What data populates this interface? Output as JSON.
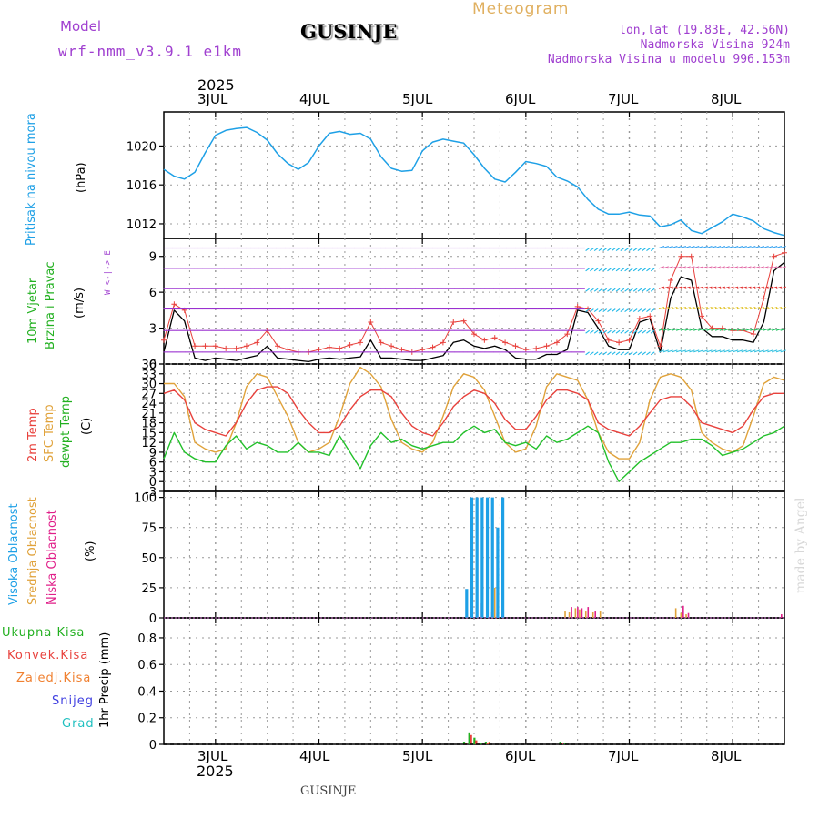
{
  "header": {
    "model_label": "Model",
    "model_name": "wrf-nmm_v3.9.1 e1km",
    "station": "GUSINJE",
    "product": "Meteogram",
    "lonlat": "lon,lat (19.83E, 42.56N)",
    "elevation": "Nadmorska Visina 924m",
    "model_elevation": "Nadmorska Visina u modelu 996.153m"
  },
  "footer": {
    "station": "GUSINJE",
    "credit": "made by Angel"
  },
  "time_axis": {
    "year": "2025",
    "day_labels": [
      "3JUL",
      "4JUL",
      "5JUL",
      "6JUL",
      "7JUL",
      "8JUL"
    ],
    "start_day": 2.5,
    "end_day": 8.5
  },
  "colors": {
    "pressure": "#1ea0e6",
    "temp2m": "#e8413c",
    "sfc_temp": "#e0a23a",
    "dewpt": "#22c02a",
    "cloud_high": "#1ea0e6",
    "cloud_mid": "#e0a23a",
    "cloud_low": "#e0208a",
    "precip_total": "#22b020",
    "precip_conv": "#e8413c",
    "precip_frozen": "#f08030",
    "snow": "#4040e0",
    "hail": "#20c0c0",
    "wind_speed": "#000000",
    "gust": "#e8413c",
    "axis_label": "#000000",
    "meta": "#a040d0"
  },
  "panels": {
    "pressure": {
      "label": "Pritisak na nivou mora",
      "unit": "(hPa)",
      "ticks": [
        "1012",
        "1016",
        "1020"
      ]
    },
    "wind": {
      "label1": "10m Vjetar",
      "label2": "Brzina i Pravac",
      "unit": "(m/s)",
      "ticks": [
        "0",
        "3",
        "6",
        "9"
      ],
      "compass": "W <-|-> E",
      "compass_n": "N",
      "compass_s": "S"
    },
    "temp": {
      "label_2m": "2m Temp",
      "label_sfc": "SFC Temp",
      "label_dew": "dewpt Temp",
      "unit": "(C)",
      "ticks": [
        "-3",
        "0",
        "3",
        "6",
        "9",
        "12",
        "15",
        "18",
        "21",
        "24",
        "27",
        "30",
        "33",
        "36"
      ]
    },
    "cloud": {
      "label_high": "Visoka Oblacnost",
      "label_mid": "Srednja Oblacnost",
      "label_low": "Niska Oblacnost",
      "unit": "(%)",
      "ticks": [
        "0",
        "25",
        "50",
        "75",
        "100"
      ]
    },
    "precip": {
      "label_total": "Ukupna Kisa",
      "label_conv": "Konvek.Kisa",
      "label_frozen": "Zaledj.Kisa",
      "label_snow": "Snijeg",
      "label_hail": "Grad",
      "unit": "1hr Precip (mm)",
      "ticks": [
        "0",
        "0.2",
        "0.4",
        "0.6",
        "0.8"
      ]
    }
  },
  "chart_data": [
    {
      "type": "line",
      "title": "Pritisak na nivou mora",
      "ylabel": "hPa",
      "ylim": [
        1010.5,
        1023.5
      ],
      "grid": true,
      "x": [
        2.5,
        2.6,
        2.7,
        2.8,
        2.9,
        3.0,
        3.1,
        3.2,
        3.3,
        3.4,
        3.5,
        3.6,
        3.7,
        3.8,
        3.9,
        4.0,
        4.1,
        4.2,
        4.3,
        4.4,
        4.5,
        4.6,
        4.7,
        4.8,
        4.9,
        5.0,
        5.1,
        5.2,
        5.3,
        5.4,
        5.5,
        5.6,
        5.7,
        5.8,
        5.9,
        6.0,
        6.1,
        6.2,
        6.3,
        6.4,
        6.5,
        6.6,
        6.7,
        6.8,
        6.9,
        7.0,
        7.1,
        7.2,
        7.3,
        7.4,
        7.5,
        7.6,
        7.7,
        7.8,
        7.9,
        8.0,
        8.1,
        8.2,
        8.3,
        8.4,
        8.5
      ],
      "series": [
        {
          "name": "Pritisak na nivou mora",
          "values": [
            1017.6,
            1016.9,
            1016.6,
            1017.3,
            1019.3,
            1021.1,
            1021.6,
            1021.8,
            1021.9,
            1021.4,
            1020.6,
            1019.2,
            1018.2,
            1017.6,
            1018.3,
            1020.0,
            1021.3,
            1021.5,
            1021.2,
            1021.3,
            1020.7,
            1018.9,
            1017.7,
            1017.4,
            1017.5,
            1019.5,
            1020.4,
            1020.7,
            1020.5,
            1020.3,
            1019.1,
            1017.7,
            1016.6,
            1016.3,
            1017.3,
            1018.4,
            1018.2,
            1017.9,
            1016.8,
            1016.4,
            1015.8,
            1014.5,
            1013.5,
            1013.0,
            1013.0,
            1013.2,
            1012.9,
            1012.8,
            1011.7,
            1011.9,
            1012.4,
            1011.3,
            1011.0,
            1011.6,
            1012.2,
            1013.0,
            1012.7,
            1012.3,
            1011.5,
            1011.1,
            1010.8
          ]
        }
      ]
    },
    {
      "type": "line",
      "title": "10m Vjetar Brzina i Pravac",
      "ylabel": "m/s",
      "ylim": [
        0,
        10.5
      ],
      "grid": true,
      "x": [
        2.5,
        2.6,
        2.7,
        2.8,
        2.9,
        3.0,
        3.1,
        3.2,
        3.3,
        3.4,
        3.5,
        3.6,
        3.7,
        3.8,
        3.9,
        4.0,
        4.1,
        4.2,
        4.3,
        4.4,
        4.5,
        4.6,
        4.7,
        4.8,
        4.9,
        5.0,
        5.1,
        5.2,
        5.3,
        5.4,
        5.5,
        5.6,
        5.7,
        5.8,
        5.9,
        6.0,
        6.1,
        6.2,
        6.3,
        6.4,
        6.5,
        6.6,
        6.7,
        6.8,
        6.9,
        7.0,
        7.1,
        7.2,
        7.3,
        7.4,
        7.5,
        7.6,
        7.7,
        7.8,
        7.9,
        8.0,
        8.1,
        8.2,
        8.3,
        8.4,
        8.5
      ],
      "series": [
        {
          "name": "speed",
          "values": [
            1.0,
            4.5,
            3.6,
            0.5,
            0.3,
            0.5,
            0.4,
            0.3,
            0.5,
            0.7,
            1.5,
            0.5,
            0.4,
            0.3,
            0.2,
            0.4,
            0.5,
            0.4,
            0.5,
            0.6,
            2.0,
            0.5,
            0.5,
            0.4,
            0.3,
            0.3,
            0.5,
            0.7,
            1.8,
            2.0,
            1.5,
            1.3,
            1.5,
            1.2,
            0.5,
            0.4,
            0.4,
            0.8,
            0.8,
            1.2,
            4.5,
            4.3,
            3.0,
            1.5,
            1.2,
            1.2,
            3.5,
            3.8,
            1.0,
            5.5,
            7.3,
            7.0,
            3.0,
            2.3,
            2.3,
            2.0,
            2.0,
            1.8,
            3.5,
            7.8,
            8.5
          ]
        },
        {
          "name": "gust",
          "values": [
            2.0,
            5.0,
            4.5,
            1.5,
            1.5,
            1.5,
            1.3,
            1.3,
            1.5,
            1.8,
            2.8,
            1.5,
            1.2,
            1.0,
            1.0,
            1.2,
            1.4,
            1.3,
            1.6,
            1.8,
            3.5,
            1.8,
            1.5,
            1.2,
            1.0,
            1.2,
            1.4,
            1.8,
            3.5,
            3.6,
            2.5,
            2.0,
            2.2,
            1.8,
            1.5,
            1.2,
            1.3,
            1.5,
            1.8,
            2.5,
            4.8,
            4.6,
            3.6,
            2.0,
            1.8,
            2.0,
            3.8,
            4.0,
            1.5,
            7.0,
            9.0,
            9.0,
            4.0,
            3.0,
            3.0,
            2.8,
            2.8,
            2.5,
            5.5,
            9.0,
            9.3
          ]
        }
      ],
      "barbs": {
        "levels": [
          1,
          2.8,
          4.6,
          6.3,
          8,
          9.7
        ],
        "vectors": [
          {
            "x": 2.55,
            "level": 1,
            "dir": "NE",
            "speed": 6
          },
          {
            "x": 2.9,
            "level": 1,
            "dir": "SW",
            "speed": 4
          },
          {
            "x": 3.3,
            "level": 1,
            "dir": "SW",
            "speed": 4
          },
          {
            "x": 3.65,
            "level": 1,
            "dir": "S",
            "speed": 5
          },
          {
            "x": 4.0,
            "level": 1,
            "dir": "SW",
            "speed": 4
          },
          {
            "x": 4.4,
            "level": 1,
            "dir": "S",
            "speed": 5
          },
          {
            "x": 4.6,
            "level": 1,
            "dir": "SW",
            "speed": 4
          },
          {
            "x": 5.0,
            "level": 1,
            "dir": "SW",
            "speed": 4
          },
          {
            "x": 5.5,
            "level": 1,
            "dir": "S",
            "speed": 5
          },
          {
            "x": 6.0,
            "level": 1,
            "dir": "SW",
            "speed": 4
          },
          {
            "x": 6.6,
            "level": 1,
            "dir": "SW",
            "speed": 4
          },
          {
            "x": 6.9,
            "level": 1,
            "dir": "S",
            "speed": 5
          },
          {
            "x": 7.3,
            "level": 1,
            "dir": "NE",
            "speed": 8
          },
          {
            "x": 7.7,
            "level": 1,
            "dir": "NE",
            "speed": 6
          },
          {
            "x": 8.1,
            "level": 1,
            "dir": "NE",
            "speed": 7
          },
          {
            "x": 8.45,
            "level": 1,
            "dir": "NE",
            "speed": 8
          }
        ]
      }
    },
    {
      "type": "line",
      "title": "2m Temp / SFC Temp / dewpt Temp",
      "ylabel": "C",
      "ylim": [
        -3,
        36
      ],
      "grid": true,
      "x": [
        2.5,
        2.6,
        2.7,
        2.8,
        2.9,
        3.0,
        3.1,
        3.2,
        3.3,
        3.4,
        3.5,
        3.6,
        3.7,
        3.8,
        3.9,
        4.0,
        4.1,
        4.2,
        4.3,
        4.4,
        4.5,
        4.6,
        4.7,
        4.8,
        4.9,
        5.0,
        5.1,
        5.2,
        5.3,
        5.4,
        5.5,
        5.6,
        5.7,
        5.8,
        5.9,
        6.0,
        6.1,
        6.2,
        6.3,
        6.4,
        6.5,
        6.6,
        6.7,
        6.8,
        6.9,
        7.0,
        7.1,
        7.2,
        7.3,
        7.4,
        7.5,
        7.6,
        7.7,
        7.8,
        7.9,
        8.0,
        8.1,
        8.2,
        8.3,
        8.4,
        8.5
      ],
      "series": [
        {
          "name": "2m Temp",
          "values": [
            27,
            28,
            25,
            18,
            16,
            15,
            14,
            18,
            24,
            28,
            29,
            29,
            27,
            22,
            18,
            15,
            15,
            17,
            22,
            26,
            28,
            28,
            26,
            21,
            17,
            15,
            14,
            18,
            23,
            26,
            28,
            27,
            24,
            19,
            16,
            16,
            20,
            25,
            28,
            28,
            27,
            25,
            18,
            16,
            15,
            14,
            17,
            21,
            25,
            26,
            26,
            23,
            18,
            17,
            16,
            15,
            17,
            22,
            26,
            27,
            27
          ]
        },
        {
          "name": "SFC Temp",
          "values": [
            30,
            30,
            26,
            12,
            10,
            9,
            10,
            18,
            29,
            33,
            32,
            26,
            20,
            12,
            9,
            10,
            12,
            20,
            30,
            35,
            33,
            29,
            19,
            12,
            10,
            9,
            12,
            20,
            29,
            33,
            32,
            28,
            20,
            12,
            9,
            10,
            17,
            29,
            33,
            32,
            31,
            25,
            15,
            9,
            7,
            7,
            12,
            25,
            32,
            33,
            32,
            28,
            15,
            12,
            10,
            9,
            11,
            20,
            30,
            32,
            31
          ]
        },
        {
          "name": "dewpt Temp",
          "values": [
            7,
            15,
            9,
            7,
            6,
            6,
            11,
            14,
            10,
            12,
            11,
            9,
            9,
            12,
            9,
            9,
            8,
            14,
            9,
            4,
            11,
            15,
            12,
            13,
            11,
            10,
            11,
            12,
            12,
            15,
            17,
            15,
            16,
            12,
            11,
            12,
            10,
            14,
            12,
            13,
            15,
            17,
            15,
            6,
            0,
            3,
            6,
            8,
            10,
            12,
            12,
            13,
            13,
            11,
            8,
            9,
            10,
            12,
            14,
            15,
            17
          ]
        }
      ]
    },
    {
      "type": "bar",
      "title": "Visoka / Srednja / Niska Oblacnost",
      "ylabel": "%",
      "ylim": [
        0,
        105
      ],
      "grid": true,
      "x": [
        5.45,
        5.5,
        5.55,
        5.6,
        5.65,
        5.7,
        5.75,
        5.8,
        6.38,
        6.42,
        6.48,
        6.52,
        6.58,
        6.65,
        6.72,
        7.45,
        7.5,
        7.55,
        8.45
      ],
      "series": [
        {
          "name": "Visoka Oblacnost",
          "values": [
            24,
            100,
            100,
            100,
            100,
            100,
            75,
            100,
            0,
            0,
            0,
            0,
            0,
            0,
            0,
            0,
            0,
            0,
            0
          ]
        },
        {
          "name": "Srednja Oblacnost",
          "values": [
            0,
            0,
            0,
            0,
            0,
            25,
            0,
            0,
            6,
            5,
            8,
            7,
            6,
            5,
            6,
            8,
            4,
            3,
            0
          ]
        },
        {
          "name": "Niska Oblacnost",
          "values": [
            8,
            10,
            12,
            6,
            5,
            4,
            0,
            0,
            0,
            9,
            9,
            8,
            9,
            6,
            0,
            0,
            10,
            4,
            3
          ]
        }
      ]
    },
    {
      "type": "bar",
      "title": "1hr Precip",
      "ylabel": "mm",
      "ylim": [
        0,
        0.95
      ],
      "grid": true,
      "x": [
        5.42,
        5.47,
        5.52,
        5.58,
        5.63,
        6.35,
        6.4
      ],
      "series": [
        {
          "name": "Ukupna Kisa",
          "values": [
            0.02,
            0.09,
            0.05,
            0.01,
            0.02,
            0.02,
            0.01
          ]
        },
        {
          "name": "Konvek.Kisa",
          "values": [
            0.01,
            0.07,
            0.03,
            0.0,
            0.01,
            0.01,
            0.0
          ]
        },
        {
          "name": "Zaledj.Kisa",
          "values": [
            0.0,
            0.0,
            0.0,
            0.0,
            0.02,
            0.0,
            0.0
          ]
        },
        {
          "name": "Snijeg",
          "values": [
            0,
            0,
            0,
            0,
            0,
            0,
            0
          ]
        },
        {
          "name": "Grad",
          "values": [
            0,
            0,
            0,
            0,
            0,
            0,
            0
          ]
        }
      ]
    }
  ]
}
